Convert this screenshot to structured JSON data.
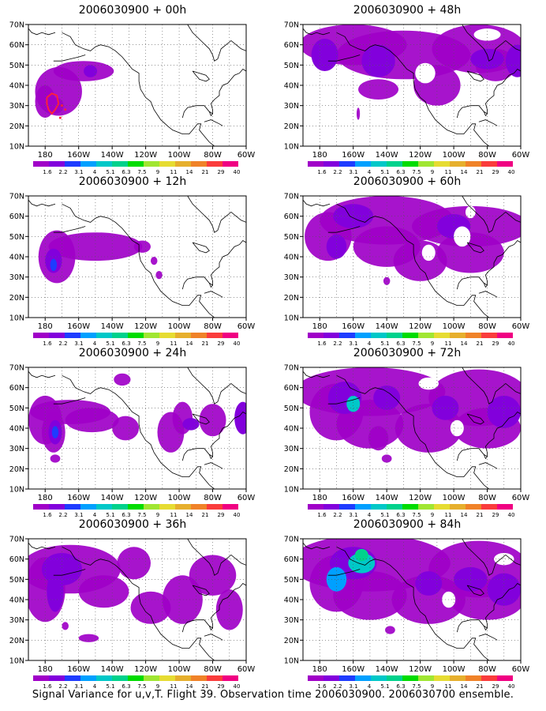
{
  "panels": [
    {
      "title": "2006030900 + 00h"
    },
    {
      "title": "2006030900 + 48h"
    },
    {
      "title": "2006030900 + 12h"
    },
    {
      "title": "2006030900 + 60h"
    },
    {
      "title": "2006030900 + 24h"
    },
    {
      "title": "2006030900 + 72h"
    },
    {
      "title": "2006030900 + 36h"
    },
    {
      "title": "2006030900 + 84h"
    }
  ],
  "axes": {
    "lat_labels": [
      "70N",
      "60N",
      "50N",
      "40N",
      "30N",
      "20N",
      "10N"
    ],
    "lon_labels": [
      "180",
      "160W",
      "140W",
      "120W",
      "100W",
      "80W",
      "60W"
    ]
  },
  "legend": {
    "labels": [
      "1.6",
      "2.2",
      "3.1",
      "4",
      "5.1",
      "6.3",
      "7.5",
      "9",
      "11",
      "14",
      "21",
      "29",
      "40"
    ],
    "colors": [
      "#a000c8",
      "#8200dc",
      "#1e3cff",
      "#00a0ff",
      "#00c8c8",
      "#00d28c",
      "#00dc00",
      "#a0e632",
      "#e6dc32",
      "#e6af2d",
      "#f08228",
      "#fa3c3c",
      "#f00082"
    ]
  },
  "footer": "Signal Variance for u,v,T. Flight 39. Observation time 2006030900. 2006030700 ensemble."
}
